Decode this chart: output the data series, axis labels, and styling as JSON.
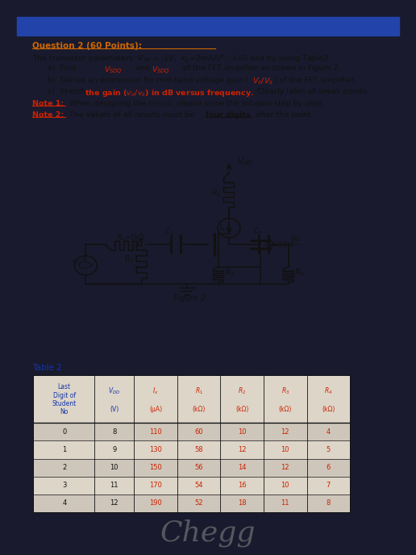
{
  "bg_outer": "#1a1a2e",
  "bg_paper": "#d0c8bc",
  "bg_blue_bar": "#2244aa",
  "title": "Question 2 (60 Points):",
  "title_color": "#cc6600",
  "body_color": "#111111",
  "red_color": "#cc2200",
  "blue_color": "#1133aa",
  "figure_label": "Figure 2.",
  "table_label": "Table 2",
  "table_data": [
    [
      "0",
      "8",
      "110",
      "60",
      "10",
      "12",
      "4"
    ],
    [
      "1",
      "9",
      "130",
      "58",
      "12",
      "10",
      "5"
    ],
    [
      "2",
      "10",
      "150",
      "56",
      "14",
      "12",
      "6"
    ],
    [
      "3",
      "11",
      "170",
      "54",
      "16",
      "10",
      "7"
    ],
    [
      "4",
      "12",
      "190",
      "52",
      "18",
      "11",
      "8"
    ]
  ],
  "chegg_text": "Chegg"
}
